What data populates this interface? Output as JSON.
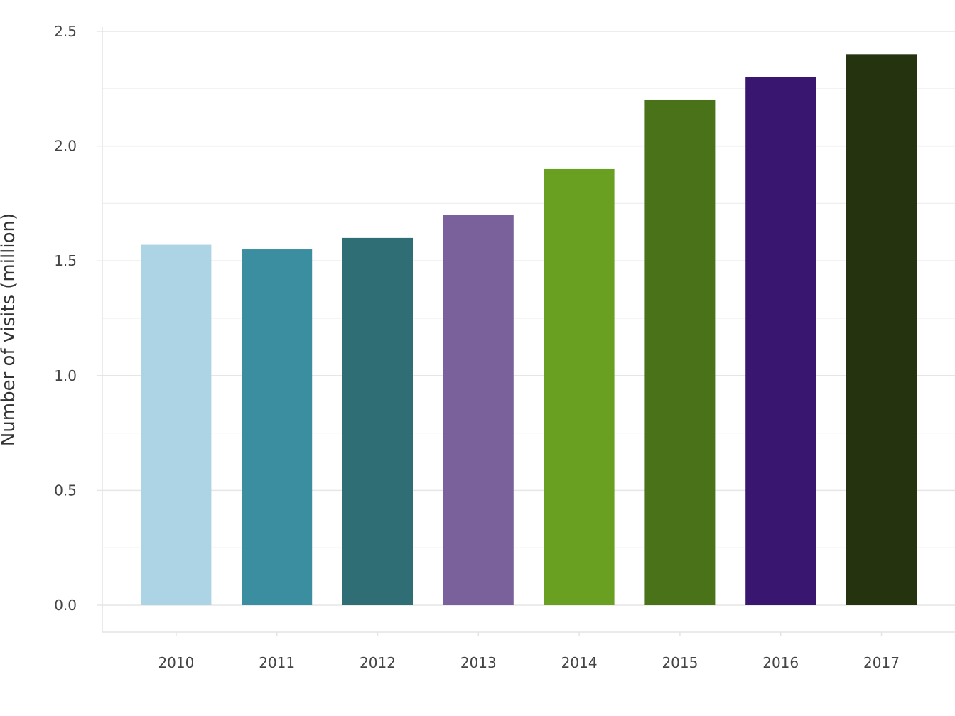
{
  "chart_data": {
    "type": "bar",
    "categories": [
      "2010",
      "2011",
      "2012",
      "2013",
      "2014",
      "2015",
      "2016",
      "2017"
    ],
    "values": [
      1.57,
      1.55,
      1.6,
      1.7,
      1.9,
      2.2,
      2.3,
      2.4
    ],
    "colors": [
      "#acd4e4",
      "#3a8ea0",
      "#2e6e74",
      "#7b619b",
      "#6aa022",
      "#4a7219",
      "#39166f",
      "#25330f"
    ],
    "title": "",
    "xlabel": "",
    "ylabel": "Number of visits (million)",
    "ylim": [
      0,
      2.5
    ],
    "yticks": [
      "0.0",
      "0.5",
      "1.0",
      "1.5",
      "2.0",
      "2.5"
    ],
    "ytick_values": [
      0,
      0.5,
      1.0,
      1.5,
      2.0,
      2.5
    ],
    "grid": true,
    "minor_grid": true,
    "legend": "none"
  }
}
